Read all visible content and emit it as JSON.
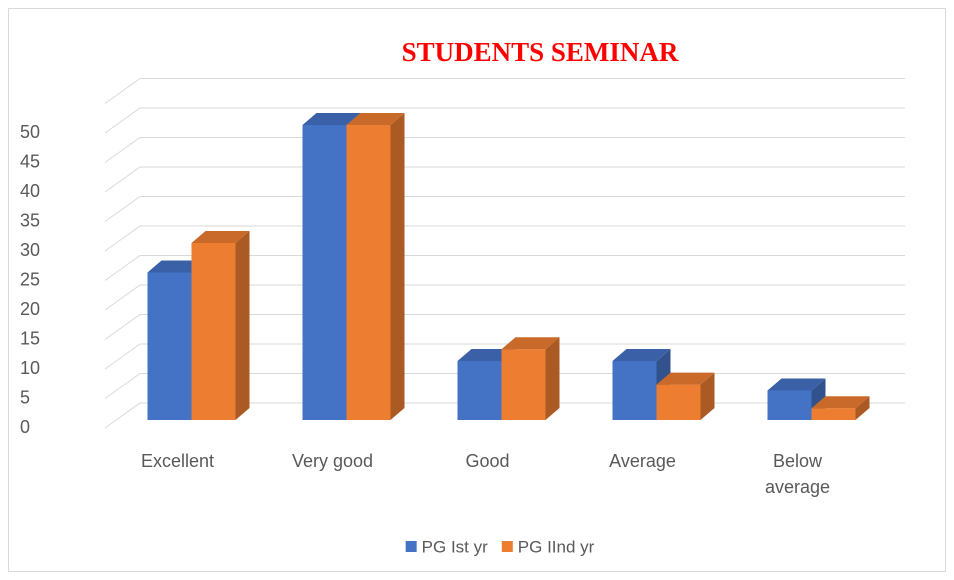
{
  "chart_data": {
    "type": "bar3d",
    "title": "STUDENTS  SEMINAR",
    "categories": [
      "Excellent",
      "Very good",
      "Good",
      "Average",
      "Below average"
    ],
    "series": [
      {
        "name": "PG Ist yr",
        "color": "#4472c4",
        "values": [
          25,
          50,
          10,
          10,
          5
        ]
      },
      {
        "name": "PG IInd yr",
        "color": "#ed7d31",
        "values": [
          30,
          50,
          12,
          6,
          2
        ]
      }
    ],
    "ylim": [
      0,
      55
    ],
    "yticks": [
      0,
      5,
      10,
      15,
      20,
      25,
      30,
      35,
      40,
      45,
      50
    ],
    "grid": true,
    "legend": "bottom"
  }
}
